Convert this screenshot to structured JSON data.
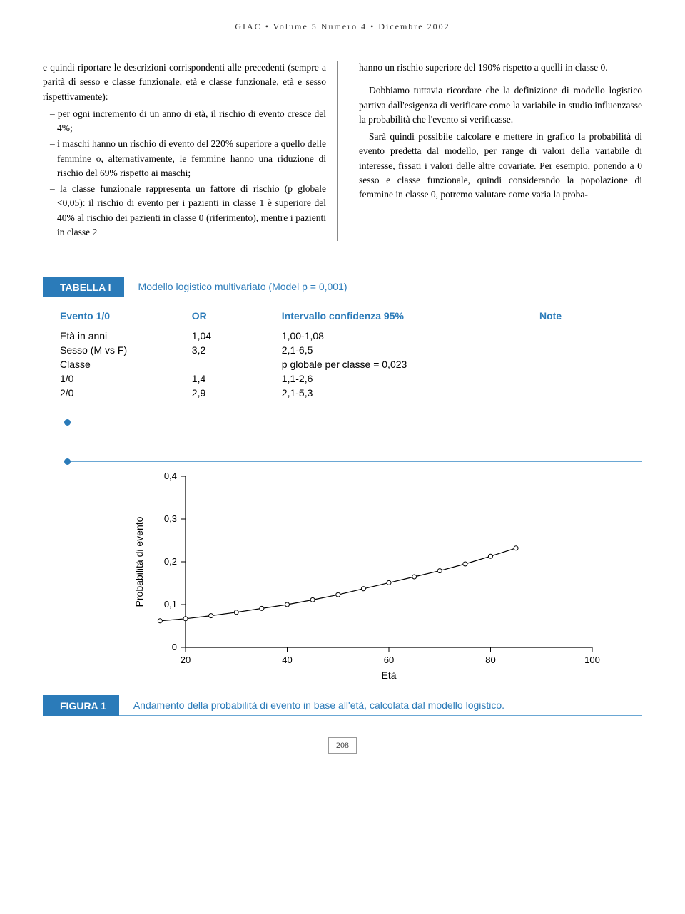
{
  "header": {
    "journal": "GIAC • Volume 5 Numero 4 • Dicembre 2002"
  },
  "body": {
    "left": {
      "intro": "e quindi riportare le descrizioni corrispondenti alle precedenti (sempre a parità di sesso e classe funzionale, età e classe funzionale, età e sesso rispettivamente):",
      "b1": "per ogni incremento di un anno di età, il rischio di evento cresce del 4%;",
      "b2": "i maschi hanno un rischio di evento del 220% superiore a quello delle femmine o, alternativamente, le femmine hanno una riduzione di rischio del 69% rispetto ai maschi;",
      "b3": "la classe funzionale rappresenta un fattore di rischio (p globale <0,05): il rischio di evento per i pazienti in classe 1 è superiore del 40% al rischio dei pazienti in classe 0 (riferimento), mentre i pazienti in classe 2"
    },
    "right": {
      "p1": "hanno un rischio superiore del 190% rispetto a quelli in classe 0.",
      "p2": "Dobbiamo tuttavia ricordare che la definizione di modello logistico partiva dall'esigenza di verificare come la variabile in studio influenzasse la probabilità che l'evento si verificasse.",
      "p3": "Sarà quindi possibile calcolare e mettere in grafico la probabilità di evento predetta dal modello, per range di valori della variabile di interesse, fissati i valori delle altre covariate. Per esempio, ponendo a 0 sesso e classe funzionale, quindi considerando la popolazione di femmine in classe 0, potremo valutare come varia la proba-"
    }
  },
  "table": {
    "badge": "TABELLA I",
    "caption": "Modello logistico multivariato (Model p = 0,001)",
    "headers": {
      "c1": "Evento 1/0",
      "c2": "OR",
      "c3": "Intervallo confidenza 95%",
      "c4": "Note"
    },
    "rows": [
      {
        "c1": "Età in anni",
        "c2": "1,04",
        "c3": "1,00-1,08",
        "c4": ""
      },
      {
        "c1": "Sesso (M vs F)",
        "c2": "3,2",
        "c3": "2,1-6,5",
        "c4": ""
      },
      {
        "c1": "Classe",
        "c2": "",
        "c3": "p globale per classe = 0,023",
        "c4": ""
      },
      {
        "c1": "1/0",
        "c2": "1,4",
        "c3": "1,1-2,6",
        "c4": ""
      },
      {
        "c1": "2/0",
        "c2": "2,9",
        "c3": "2,1-5,3",
        "c4": ""
      }
    ]
  },
  "figure": {
    "badge": "FIGURA 1",
    "caption": "Andamento della probabilità di evento in base all'età, calcolata dal modello logistico.",
    "chart": {
      "type": "line",
      "xlabel": "Età",
      "ylabel": "Probabilità di evento",
      "xlim": [
        20,
        100
      ],
      "ylim": [
        0,
        0.4
      ],
      "xticks": [
        20,
        40,
        60,
        80,
        100
      ],
      "yticks": [
        0,
        0.1,
        0.2,
        0.3,
        0.4
      ],
      "ytick_labels": [
        "0",
        "0,1",
        "0,2",
        "0,3",
        "0,4"
      ],
      "line_color": "#000000",
      "marker_fill": "#ffffff",
      "marker_stroke": "#000000",
      "marker_radius": 3,
      "background": "#ffffff",
      "x": [
        15,
        20,
        25,
        30,
        35,
        40,
        45,
        50,
        55,
        60,
        65,
        70,
        75,
        80,
        85
      ],
      "y": [
        0.062,
        0.067,
        0.074,
        0.082,
        0.091,
        0.1,
        0.111,
        0.123,
        0.137,
        0.151,
        0.165,
        0.179,
        0.195,
        0.213,
        0.232
      ]
    }
  },
  "page_number": "208"
}
